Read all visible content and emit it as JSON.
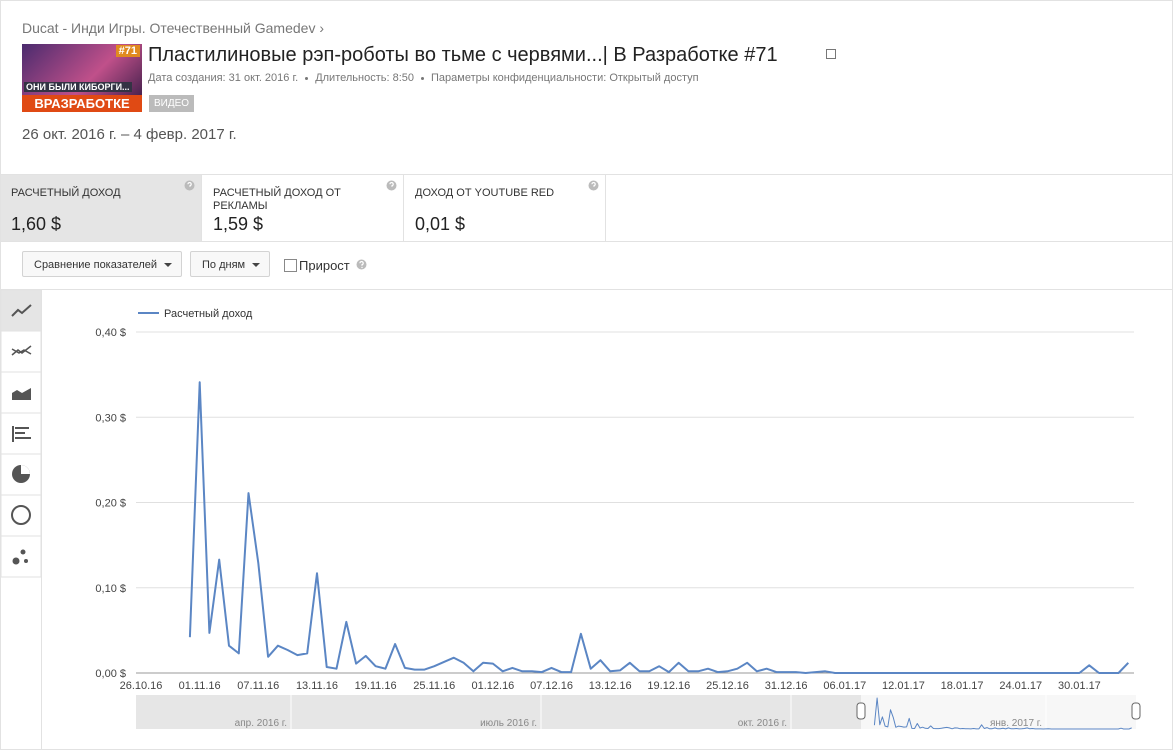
{
  "header": {
    "breadcrumb": "Ducat - Инди Игры. Отечественный Gamedev ›",
    "thumbnail": {
      "badge": "#71",
      "caption": "ОНИ БЫЛИ КИБОРГИ...",
      "banner": "ВРАЗРАБОТКЕ"
    },
    "title": "Пластилиновые рэп-роботы во тьме с червями...| В Разработке #71",
    "meta": [
      "Дата создания: 31 окт. 2016 г.",
      "Длительность: 8:50",
      "Параметры конфиденциальности: Открытый доступ"
    ],
    "badge": "ВИДЕО",
    "date_range": "26 окт. 2016 г. – 4 февр. 2017 г."
  },
  "metrics": [
    {
      "label": "РАСЧЕТНЫЙ ДОХОД",
      "value": "1,60 $"
    },
    {
      "label": "РАСЧЕТНЫЙ ДОХОД ОТ РЕКЛАМЫ",
      "value": "1,59 $"
    },
    {
      "label": "ДОХОД ОТ YOUTUBE RED",
      "value": "0,01 $"
    }
  ],
  "controls": {
    "compare": "Сравнение показателей",
    "period": "По дням",
    "growth": "Прирост"
  },
  "chart_data": {
    "type": "line",
    "categories": [
      "26.10.16",
      null,
      null,
      null,
      null,
      null,
      "01.11.16",
      null,
      null,
      null,
      null,
      null,
      "07.11.16",
      null,
      null,
      null,
      null,
      null,
      "13.11.16",
      null,
      null,
      null,
      null,
      null,
      "19.11.16",
      null,
      null,
      null,
      null,
      null,
      "25.11.16",
      null,
      null,
      null,
      null,
      null,
      "01.12.16",
      null,
      null,
      null,
      null,
      null,
      "07.12.16",
      null,
      null,
      null,
      null,
      null,
      "13.12.16",
      null,
      null,
      null,
      null,
      null,
      "19.12.16",
      null,
      null,
      null,
      null,
      null,
      "25.12.16",
      null,
      null,
      null,
      null,
      null,
      "31.12.16",
      null,
      null,
      null,
      null,
      null,
      "06.01.17",
      null,
      null,
      null,
      null,
      null,
      "12.01.17",
      null,
      null,
      null,
      null,
      null,
      "18.01.17",
      null,
      null,
      null,
      null,
      null,
      "24.01.17",
      null,
      null,
      null,
      null,
      null,
      "30.01.17",
      null,
      null,
      null,
      null,
      null
    ],
    "series": [
      {
        "name": "Расчетный доход",
        "color": "#5b86c4",
        "values": [
          null,
          null,
          null,
          null,
          null,
          0.042,
          0.341,
          0.047,
          0.133,
          0.032,
          0.023,
          0.211,
          0.129,
          0.019,
          0.032,
          0.027,
          0.021,
          0.023,
          0.117,
          0.007,
          0.005,
          0.06,
          0.011,
          0.02,
          0.008,
          0.005,
          0.034,
          0.006,
          0.004,
          0.004,
          0.008,
          0.013,
          0.018,
          0.012,
          0.002,
          0.012,
          0.011,
          0.002,
          0.006,
          0.002,
          0.002,
          0.001,
          0.006,
          0.001,
          0.001,
          0.046,
          0.005,
          0.015,
          0.002,
          0.003,
          0.012,
          0.002,
          0.002,
          0.008,
          0.001,
          0.012,
          0.002,
          0.002,
          0.005,
          0.001,
          0.002,
          0.005,
          0.012,
          0.002,
          0.005,
          0.001,
          0.001,
          0.001,
          0,
          0.001,
          0.002,
          0,
          0,
          0,
          0,
          0,
          0,
          0,
          0,
          0,
          0,
          0,
          0,
          0,
          0,
          0,
          0,
          0,
          0,
          0,
          0,
          0,
          0,
          0,
          0,
          0,
          0,
          0.009,
          0,
          0,
          0,
          0.012
        ]
      }
    ],
    "ylim": [
      0,
      0.4
    ],
    "yticks": [
      {
        "value": 0,
        "label": "0,00 $"
      },
      {
        "value": 0.1,
        "label": "0,10 $"
      },
      {
        "value": 0.2,
        "label": "0,20 $"
      },
      {
        "value": 0.3,
        "label": "0,30 $"
      },
      {
        "value": 0.4,
        "label": "0,40 $"
      }
    ],
    "grid": true,
    "navigator_labels": [
      "апр. 2016 г.",
      "июль 2016 г.",
      "окт. 2016 г.",
      "янв. 2017 г."
    ]
  }
}
